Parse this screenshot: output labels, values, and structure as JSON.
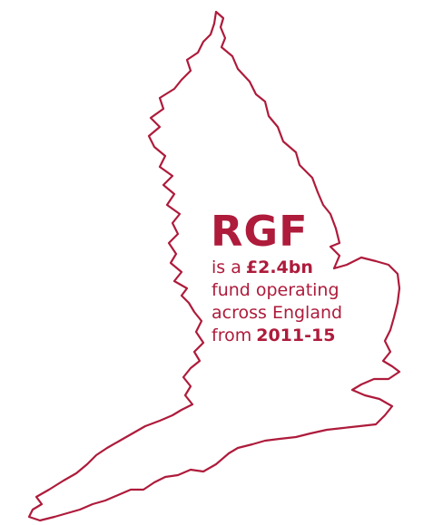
{
  "title": "RGF",
  "lines": [
    {
      "text": "is a",
      "bold": "£2.4bn"
    },
    {
      "text": "fund operating"
    },
    {
      "text": "across England"
    },
    {
      "text": "from",
      "bold": "2011-15"
    }
  ]
}
